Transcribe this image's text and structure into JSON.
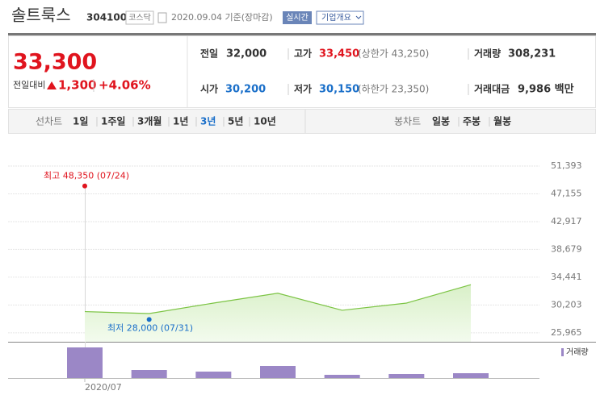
{
  "header": {
    "name": "솔트룩스",
    "code": "304100",
    "market": "코스닥",
    "date": "2020.09.04 기준(장마감)",
    "realtime": "실시간",
    "company_info": "기업개요"
  },
  "quote": {
    "price": "33,300",
    "change_label": "전일대비",
    "change": "1,300",
    "change_pct": "+4.06%",
    "items": [
      {
        "label": "전일",
        "value": "32,000"
      },
      {
        "label": "고가",
        "value": "33,450",
        "note": "(상한가 43,250)"
      },
      {
        "label": "거래량",
        "value": "308,231"
      },
      {
        "label": "시가",
        "value": "30,200"
      },
      {
        "label": "저가",
        "value": "30,150",
        "note": "(하한가 23,350)"
      },
      {
        "label": "거래대금",
        "value": "9,986 백만"
      }
    ]
  },
  "tabs": {
    "line_label": "선차트",
    "line": [
      "1일",
      "1주일",
      "3개월",
      "1년",
      "3년",
      "5년",
      "10년"
    ],
    "selected": 4,
    "candle_label": "봉차트",
    "candle": [
      "일봉",
      "주봉",
      "월봉"
    ]
  },
  "chart": {
    "type": "area",
    "categories": [
      "2020/07",
      null,
      null,
      null,
      null,
      null,
      null
    ],
    "values": [
      29200,
      28900,
      30500,
      32000,
      29400,
      30500,
      33300
    ],
    "color": "#7cc444",
    "ylim": [
      24600,
      55200
    ],
    "yticks": [
      {
        "value": 25965,
        "label": "25,965"
      },
      {
        "value": 30203,
        "label": "30,203"
      },
      {
        "value": 34441,
        "label": "34,441"
      },
      {
        "value": 38679,
        "label": "38,679"
      },
      {
        "value": 42917,
        "label": "42,917"
      },
      {
        "value": 47155,
        "label": "47,155"
      },
      {
        "value": 51393,
        "label": "51,393"
      }
    ],
    "high": {
      "label": "최고 48,350 (07/24)",
      "value": 48350,
      "color": "#e0141e"
    },
    "low": {
      "label": "최저 28,000 (07/31)",
      "value": 28000,
      "color": "#1a6fc9"
    },
    "volume": {
      "name": "거래량",
      "color": "#9b87c6",
      "values": [
        38,
        10,
        8,
        15,
        4,
        5,
        6
      ],
      "vlim": [
        0,
        44
      ]
    }
  }
}
